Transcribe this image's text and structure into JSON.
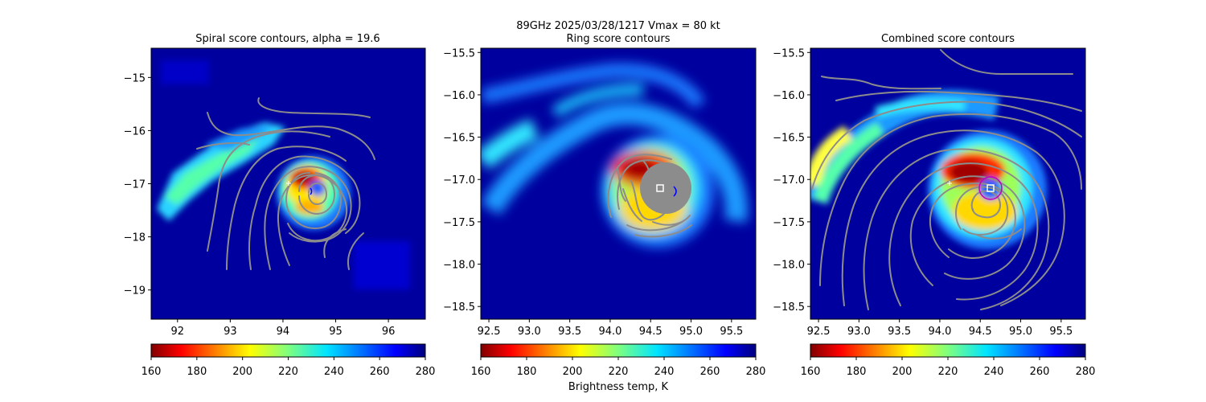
{
  "figure": {
    "suptitle": "89GHz  2025/03/28/1217    Vmax = 80 kt",
    "colorbar_label": "Brightness temp, K"
  },
  "chart_data": [
    {
      "type": "heatmap",
      "title": "Spiral score contours, alpha = 19.6",
      "xlim": [
        91.5,
        96.7
      ],
      "ylim": [
        -19.55,
        -14.45
      ],
      "x_ticks": [
        92,
        93,
        94,
        95,
        96
      ],
      "x_tick_labels": [
        "92",
        "93",
        "94",
        "95",
        "96"
      ],
      "y_ticks": [
        -15,
        -16,
        -17,
        -18,
        -19
      ],
      "y_tick_labels": [
        "−15",
        "−16",
        "−17",
        "−18",
        "−19"
      ],
      "center": [
        94.6,
        -17.1
      ],
      "colorbar": {
        "range": [
          160,
          280
        ],
        "colormap": "jet_r",
        "ticks": [
          "160",
          "180",
          "200",
          "220",
          "240",
          "260",
          "280"
        ]
      }
    },
    {
      "type": "heatmap",
      "title": "Ring score contours",
      "xlim": [
        92.4,
        95.8
      ],
      "ylim": [
        -18.65,
        -15.45
      ],
      "x_ticks": [
        92.5,
        93.0,
        93.5,
        94.0,
        94.5,
        95.0,
        95.5
      ],
      "x_tick_labels": [
        "92.5",
        "93.0",
        "93.5",
        "94.0",
        "94.5",
        "95.0",
        "95.5"
      ],
      "y_ticks": [
        -15.5,
        -16.0,
        -16.5,
        -17.0,
        -17.5,
        -18.0,
        -18.5
      ],
      "y_tick_labels": [
        "−15.5",
        "−16.0",
        "−16.5",
        "−17.0",
        "−17.5",
        "−18.0",
        "−18.5"
      ],
      "center": [
        94.6,
        -17.1
      ],
      "colorbar": {
        "range": [
          160,
          280
        ],
        "colormap": "jet_r",
        "ticks": [
          "160",
          "180",
          "200",
          "220",
          "240",
          "260",
          "280"
        ]
      }
    },
    {
      "type": "heatmap",
      "title": "Combined score contours",
      "xlim": [
        92.4,
        95.8
      ],
      "ylim": [
        -18.65,
        -15.45
      ],
      "x_ticks": [
        92.5,
        93.0,
        93.5,
        94.0,
        94.5,
        95.0,
        95.5
      ],
      "x_tick_labels": [
        "92.5",
        "93.0",
        "93.5",
        "94.0",
        "94.5",
        "95.0",
        "95.5"
      ],
      "y_ticks": [
        -15.5,
        -16.0,
        -16.5,
        -17.0,
        -17.5,
        -18.0,
        -18.5
      ],
      "y_tick_labels": [
        "−15.5",
        "−16.0",
        "−16.5",
        "−17.0",
        "−17.5",
        "−18.0",
        "−18.5"
      ],
      "center": [
        94.6,
        -17.1
      ],
      "colorbar": {
        "range": [
          160,
          280
        ],
        "colormap": "jet_r",
        "ticks": [
          "160",
          "180",
          "200",
          "220",
          "240",
          "260",
          "280"
        ]
      }
    }
  ],
  "colors": {
    "background_field": "#00009e",
    "contour": "#8c8c8c",
    "center_marker": "#ffffff"
  }
}
